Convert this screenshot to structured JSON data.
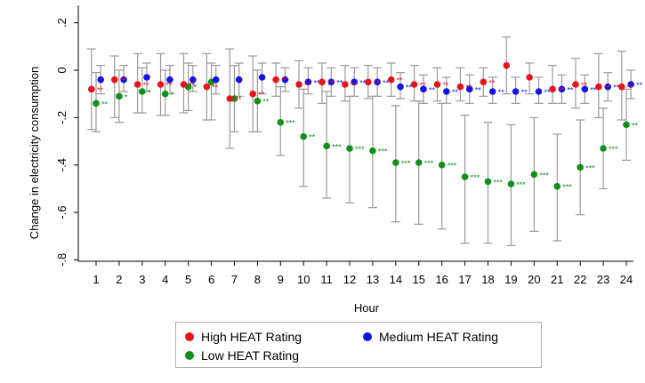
{
  "chart_data": {
    "type": "scatter",
    "subtype": "point-estimates with confidence intervals",
    "xlabel": "Hour",
    "ylabel": "Change in electricity consumption",
    "xlim": [
      0.5,
      24.4
    ],
    "ylim": [
      -0.85,
      0.22
    ],
    "x_ticks": [
      1,
      2,
      3,
      4,
      5,
      6,
      7,
      8,
      9,
      10,
      11,
      12,
      13,
      14,
      15,
      16,
      17,
      18,
      19,
      20,
      21,
      22,
      23,
      24
    ],
    "x_tick_labels": [
      "1",
      "2",
      "3",
      "4",
      "5",
      "6",
      "7",
      "8",
      "9",
      "10",
      "11",
      "12",
      "13",
      "14",
      "15",
      "16",
      "17",
      "18",
      "19",
      "20",
      "21",
      "22",
      "23",
      "24"
    ],
    "y_ticks": [
      0.2,
      0,
      -0.2,
      -0.4,
      -0.6,
      -0.8
    ],
    "y_tick_labels": [
      ".2",
      "0",
      "-.2",
      "-.4",
      "-.6",
      "-.8"
    ],
    "grid": false,
    "legend_position": "bottom",
    "x_offsets": {
      "High HEAT Rating": -0.2,
      "Medium HEAT Rating": 0.2,
      "Low HEAT Rating": 0
    },
    "series": [
      {
        "name": "High HEAT Rating",
        "color": "#e8141c",
        "x": [
          1,
          2,
          3,
          4,
          5,
          6,
          7,
          8,
          9,
          10,
          11,
          12,
          13,
          14,
          15,
          16,
          17,
          18,
          19,
          20,
          21,
          22,
          23,
          24
        ],
        "values": [
          -0.08,
          -0.04,
          -0.06,
          -0.06,
          -0.06,
          -0.07,
          -0.12,
          -0.1,
          -0.04,
          -0.06,
          -0.05,
          -0.06,
          -0.05,
          -0.04,
          -0.06,
          -0.06,
          -0.07,
          -0.05,
          0.02,
          -0.03,
          -0.08,
          -0.06,
          -0.07,
          -0.07
        ],
        "ci_low": [
          -0.25,
          -0.2,
          -0.18,
          -0.19,
          -0.18,
          -0.21,
          -0.33,
          -0.26,
          -0.11,
          -0.16,
          -0.14,
          -0.13,
          -0.12,
          -0.11,
          -0.13,
          -0.13,
          -0.13,
          -0.11,
          -0.1,
          -0.1,
          -0.14,
          -0.16,
          -0.2,
          -0.21
        ],
        "ci_high": [
          0.09,
          0.06,
          0.07,
          0.07,
          0.07,
          0.07,
          0.09,
          0.06,
          0.03,
          0.04,
          0.03,
          0.02,
          0.02,
          0.03,
          0.02,
          0.01,
          0.01,
          0.01,
          0.14,
          0.03,
          0.02,
          0.05,
          0.07,
          0.08
        ],
        "sig": [
          "**",
          "**",
          "**",
          "**",
          "**",
          "**",
          "**",
          "**",
          "**",
          "**",
          "**",
          "**",
          "**",
          "**",
          "**",
          "**",
          "**",
          "**",
          "",
          "",
          "**",
          "**",
          "**",
          "**"
        ]
      },
      {
        "name": "Medium HEAT Rating",
        "color": "#1414e8",
        "x": [
          1,
          2,
          3,
          4,
          5,
          6,
          7,
          8,
          9,
          10,
          11,
          12,
          13,
          14,
          15,
          16,
          17,
          18,
          19,
          20,
          21,
          22,
          23,
          24
        ],
        "values": [
          -0.04,
          -0.04,
          -0.03,
          -0.04,
          -0.04,
          -0.04,
          -0.04,
          -0.03,
          -0.04,
          -0.05,
          -0.05,
          -0.05,
          -0.05,
          -0.07,
          -0.08,
          -0.09,
          -0.08,
          -0.09,
          -0.09,
          -0.09,
          -0.08,
          -0.08,
          -0.07,
          -0.06
        ],
        "ci_low": [
          -0.1,
          -0.09,
          -0.09,
          -0.1,
          -0.09,
          -0.1,
          -0.11,
          -0.1,
          -0.09,
          -0.1,
          -0.11,
          -0.11,
          -0.11,
          -0.12,
          -0.14,
          -0.14,
          -0.14,
          -0.14,
          -0.14,
          -0.14,
          -0.14,
          -0.14,
          -0.13,
          -0.12
        ],
        "ci_high": [
          0.02,
          0.02,
          0.03,
          0.02,
          0.02,
          0.02,
          0.03,
          0.03,
          0.01,
          0.01,
          0.01,
          0.01,
          0.01,
          -0.01,
          -0.02,
          -0.03,
          -0.02,
          -0.03,
          -0.03,
          -0.03,
          -0.02,
          -0.02,
          -0.01,
          0.0
        ],
        "sig": [
          "",
          "",
          "",
          "",
          "",
          "",
          "",
          "",
          "",
          "**",
          "**",
          "**",
          "**",
          "**",
          "**",
          "**",
          "**",
          "**",
          "**",
          "**",
          "**",
          "**",
          "**",
          "**"
        ]
      },
      {
        "name": "Low HEAT Rating",
        "color": "#10901a",
        "x": [
          1,
          2,
          3,
          4,
          5,
          6,
          7,
          8,
          9,
          10,
          11,
          12,
          13,
          14,
          15,
          16,
          17,
          18,
          19,
          20,
          21,
          22,
          23,
          24
        ],
        "values": [
          -0.14,
          -0.11,
          -0.09,
          -0.1,
          -0.07,
          -0.05,
          -0.12,
          -0.13,
          -0.22,
          -0.28,
          -0.32,
          -0.33,
          -0.34,
          -0.39,
          -0.39,
          -0.4,
          -0.45,
          -0.47,
          -0.48,
          -0.44,
          -0.49,
          -0.41,
          -0.33,
          -0.23
        ],
        "ci_low": [
          -0.26,
          -0.22,
          -0.18,
          -0.19,
          -0.17,
          -0.21,
          -0.26,
          -0.26,
          -0.36,
          -0.49,
          -0.54,
          -0.56,
          -0.58,
          -0.64,
          -0.65,
          -0.67,
          -0.73,
          -0.73,
          -0.74,
          -0.68,
          -0.72,
          -0.61,
          -0.5,
          -0.38
        ],
        "ci_high": [
          -0.01,
          0.0,
          0.01,
          0.0,
          0.03,
          0.03,
          0.02,
          0.0,
          -0.07,
          -0.08,
          -0.09,
          -0.11,
          -0.11,
          -0.15,
          -0.13,
          -0.14,
          -0.19,
          -0.22,
          -0.23,
          -0.2,
          -0.27,
          -0.21,
          -0.16,
          -0.08
        ],
        "sig": [
          "**",
          "*",
          "*",
          "*",
          "*",
          "",
          "",
          "**",
          "***",
          "**",
          "***",
          "***",
          "***",
          "***",
          "***",
          "***",
          "***",
          "***",
          "***",
          "***",
          "***",
          "***",
          "***",
          "**"
        ]
      }
    ]
  }
}
